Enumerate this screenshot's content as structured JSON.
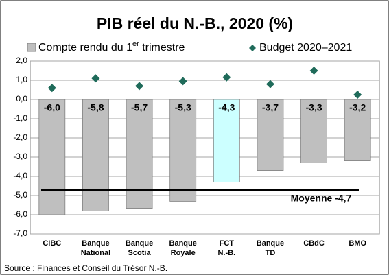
{
  "chart_data": {
    "type": "bar",
    "title": "PIB réel du N.-B., 2020 (%)",
    "categories": [
      "CIBC",
      "Banque National",
      "Banque Scotia",
      "Banque Royale",
      "FCT N.-B.",
      "Banque TD",
      "CBdC",
      "BMO"
    ],
    "series": [
      {
        "name": "Compte rendu du 1er trimestre",
        "type": "bar",
        "color": "#bfbfbf",
        "colors": [
          "#bfbfbf",
          "#bfbfbf",
          "#bfbfbf",
          "#bfbfbf",
          "#ccffff",
          "#bfbfbf",
          "#bfbfbf",
          "#bfbfbf"
        ],
        "values": [
          -6.0,
          -5.8,
          -5.7,
          -5.3,
          -4.3,
          -3.7,
          -3.3,
          -3.2
        ],
        "value_labels": [
          "-6,0",
          "-5,8",
          "-5,7",
          "-5,3",
          "-4,3",
          "-3,7",
          "-3,3",
          "-3,2"
        ]
      },
      {
        "name": "Budget 2020–2021",
        "type": "scatter",
        "color": "#1f6b5a",
        "values": [
          0.6,
          1.1,
          0.7,
          0.95,
          1.15,
          0.8,
          1.5,
          0.25
        ]
      }
    ],
    "average": -4.7,
    "average_label": "Moyenne -4,7",
    "ylim": [
      -7,
      2
    ],
    "yticks": [
      {
        "value": -7,
        "label": "-7,0"
      },
      {
        "value": -6,
        "label": "-6,0"
      },
      {
        "value": -5,
        "label": "-5,0"
      },
      {
        "value": -4,
        "label": "-4,0"
      },
      {
        "value": -3,
        "label": "-3,0"
      },
      {
        "value": -2,
        "label": "-2,0"
      },
      {
        "value": -1,
        "label": "-1,0"
      },
      {
        "value": 0,
        "label": "0,0"
      },
      {
        "value": 1,
        "label": "1,0"
      },
      {
        "value": 2,
        "label": "2,0"
      }
    ],
    "grid": true,
    "source": "Source : Finances et Conseil du Trésor N.-B."
  }
}
